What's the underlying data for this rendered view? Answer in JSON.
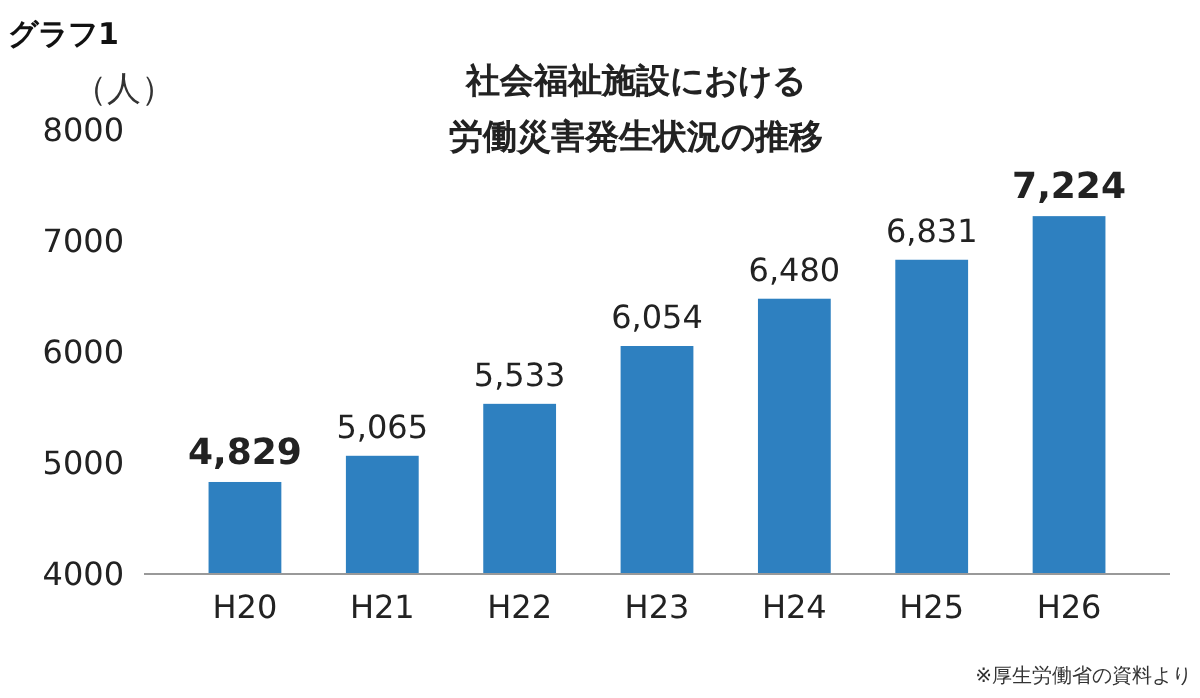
{
  "chart_data": {
    "type": "bar",
    "title": "社会福祉施設における労働災害発生状況の推移",
    "ylabel": "（人）",
    "annotations": [
      "グラフ1",
      "※厚生労働省の資料より"
    ],
    "categories": [
      "H20",
      "H21",
      "H22",
      "H23",
      "H24",
      "H25",
      "H26"
    ],
    "values": [
      4829,
      5065,
      5533,
      6054,
      6480,
      6831,
      7224
    ],
    "value_labels": [
      "4,829",
      "5,065",
      "5,533",
      "6,054",
      "6,480",
      "6,831",
      "7,224"
    ],
    "color": "#2e80c0",
    "ylim": [
      4000,
      8000
    ],
    "yticks": [
      4000,
      5000,
      6000,
      7000,
      8000
    ],
    "grid": false
  }
}
